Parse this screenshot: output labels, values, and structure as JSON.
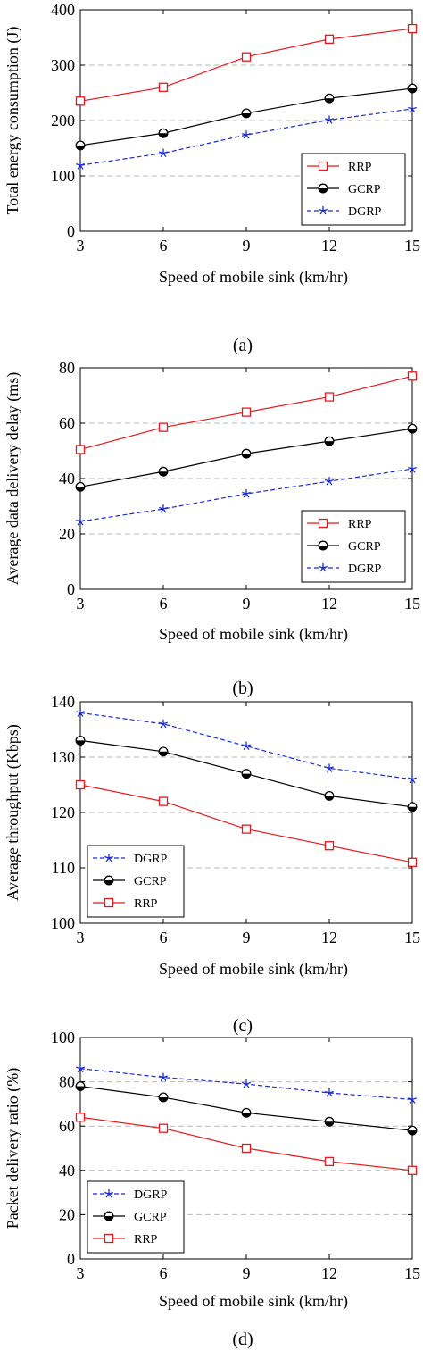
{
  "chart_data": [
    {
      "type": "line",
      "caption": "(a)",
      "xlabel": "Speed of mobile sink (km/hr)",
      "ylabel": "Total energy consumption (J)",
      "x": [
        3,
        6,
        9,
        12,
        15
      ],
      "xticks": [
        "3",
        "6",
        "9",
        "12",
        "15"
      ],
      "yticks": [
        "0",
        "100",
        "200",
        "300",
        "400"
      ],
      "xlim": [
        3,
        15
      ],
      "ylim": [
        0,
        400
      ],
      "grid": "horizontal dashed",
      "legend_position": "bottom-right",
      "legend_order": [
        "RRP",
        "GCRP",
        "DGRP"
      ],
      "series": [
        {
          "name": "RRP",
          "color": "#e8191c",
          "marker": "square",
          "dash": "solid",
          "values": [
            235,
            260,
            315,
            347,
            366
          ]
        },
        {
          "name": "GCRP",
          "color": "#000000",
          "marker": "half-circle",
          "dash": "solid",
          "values": [
            155,
            177,
            213,
            240,
            258
          ]
        },
        {
          "name": "DGRP",
          "color": "#1a2bd6",
          "marker": "star",
          "dash": "dashed",
          "values": [
            119,
            141,
            174,
            201,
            221
          ]
        }
      ]
    },
    {
      "type": "line",
      "caption": "(b)",
      "xlabel": "Speed of mobile sink (km/hr)",
      "ylabel": "Average data delivery delay (ms)",
      "x": [
        3,
        6,
        9,
        12,
        15
      ],
      "xticks": [
        "3",
        "6",
        "9",
        "12",
        "15"
      ],
      "yticks": [
        "0",
        "20",
        "40",
        "60",
        "80"
      ],
      "xlim": [
        3,
        15
      ],
      "ylim": [
        0,
        80
      ],
      "grid": "horizontal dashed",
      "legend_position": "bottom-right",
      "legend_order": [
        "RRP",
        "GCRP",
        "DGRP"
      ],
      "series": [
        {
          "name": "RRP",
          "color": "#e8191c",
          "marker": "square",
          "dash": "solid",
          "values": [
            50.5,
            58.5,
            64,
            69.5,
            77
          ]
        },
        {
          "name": "GCRP",
          "color": "#000000",
          "marker": "half-circle",
          "dash": "solid",
          "values": [
            37,
            42.5,
            49,
            53.5,
            58
          ]
        },
        {
          "name": "DGRP",
          "color": "#1a2bd6",
          "marker": "star",
          "dash": "dashed",
          "values": [
            24.5,
            29,
            34.5,
            39,
            43.5
          ]
        }
      ]
    },
    {
      "type": "line",
      "caption": "(c)",
      "xlabel": "Speed of mobile sink (km/hr)",
      "ylabel": "Average throughput (Kbps)",
      "x": [
        3,
        6,
        9,
        12,
        15
      ],
      "xticks": [
        "3",
        "6",
        "9",
        "12",
        "15"
      ],
      "yticks": [
        "100",
        "110",
        "120",
        "130",
        "140"
      ],
      "xlim": [
        3,
        15
      ],
      "ylim": [
        100,
        140
      ],
      "grid": "horizontal dashed",
      "legend_position": "bottom-left",
      "legend_order": [
        "DGRP",
        "GCRP",
        "RRP"
      ],
      "series": [
        {
          "name": "RRP",
          "color": "#e8191c",
          "marker": "square",
          "dash": "solid",
          "values": [
            125,
            122,
            117,
            114,
            111
          ]
        },
        {
          "name": "GCRP",
          "color": "#000000",
          "marker": "half-circle",
          "dash": "solid",
          "values": [
            133,
            131,
            127,
            123,
            121
          ]
        },
        {
          "name": "DGRP",
          "color": "#1a2bd6",
          "marker": "star",
          "dash": "dashed",
          "values": [
            138,
            136,
            132,
            128,
            126
          ]
        }
      ]
    },
    {
      "type": "line",
      "caption": "(d)",
      "xlabel": "Speed of mobile sink (km/hr)",
      "ylabel": "Packet delivery ratio (%)",
      "x": [
        3,
        6,
        9,
        12,
        15
      ],
      "xticks": [
        "3",
        "6",
        "9",
        "12",
        "15"
      ],
      "yticks": [
        "0",
        "20",
        "40",
        "60",
        "80",
        "100"
      ],
      "xlim": [
        3,
        15
      ],
      "ylim": [
        0,
        100
      ],
      "grid": "horizontal dashed",
      "legend_position": "bottom-left",
      "legend_order": [
        "DGRP",
        "GCRP",
        "RRP"
      ],
      "series": [
        {
          "name": "RRP",
          "color": "#e8191c",
          "marker": "square",
          "dash": "solid",
          "values": [
            64,
            59,
            50,
            44,
            40
          ]
        },
        {
          "name": "GCRP",
          "color": "#000000",
          "marker": "half-circle",
          "dash": "solid",
          "values": [
            78,
            73,
            66,
            62,
            58
          ]
        },
        {
          "name": "DGRP",
          "color": "#1a2bd6",
          "marker": "star",
          "dash": "dashed",
          "values": [
            86,
            82,
            79,
            75,
            72
          ]
        }
      ]
    }
  ]
}
